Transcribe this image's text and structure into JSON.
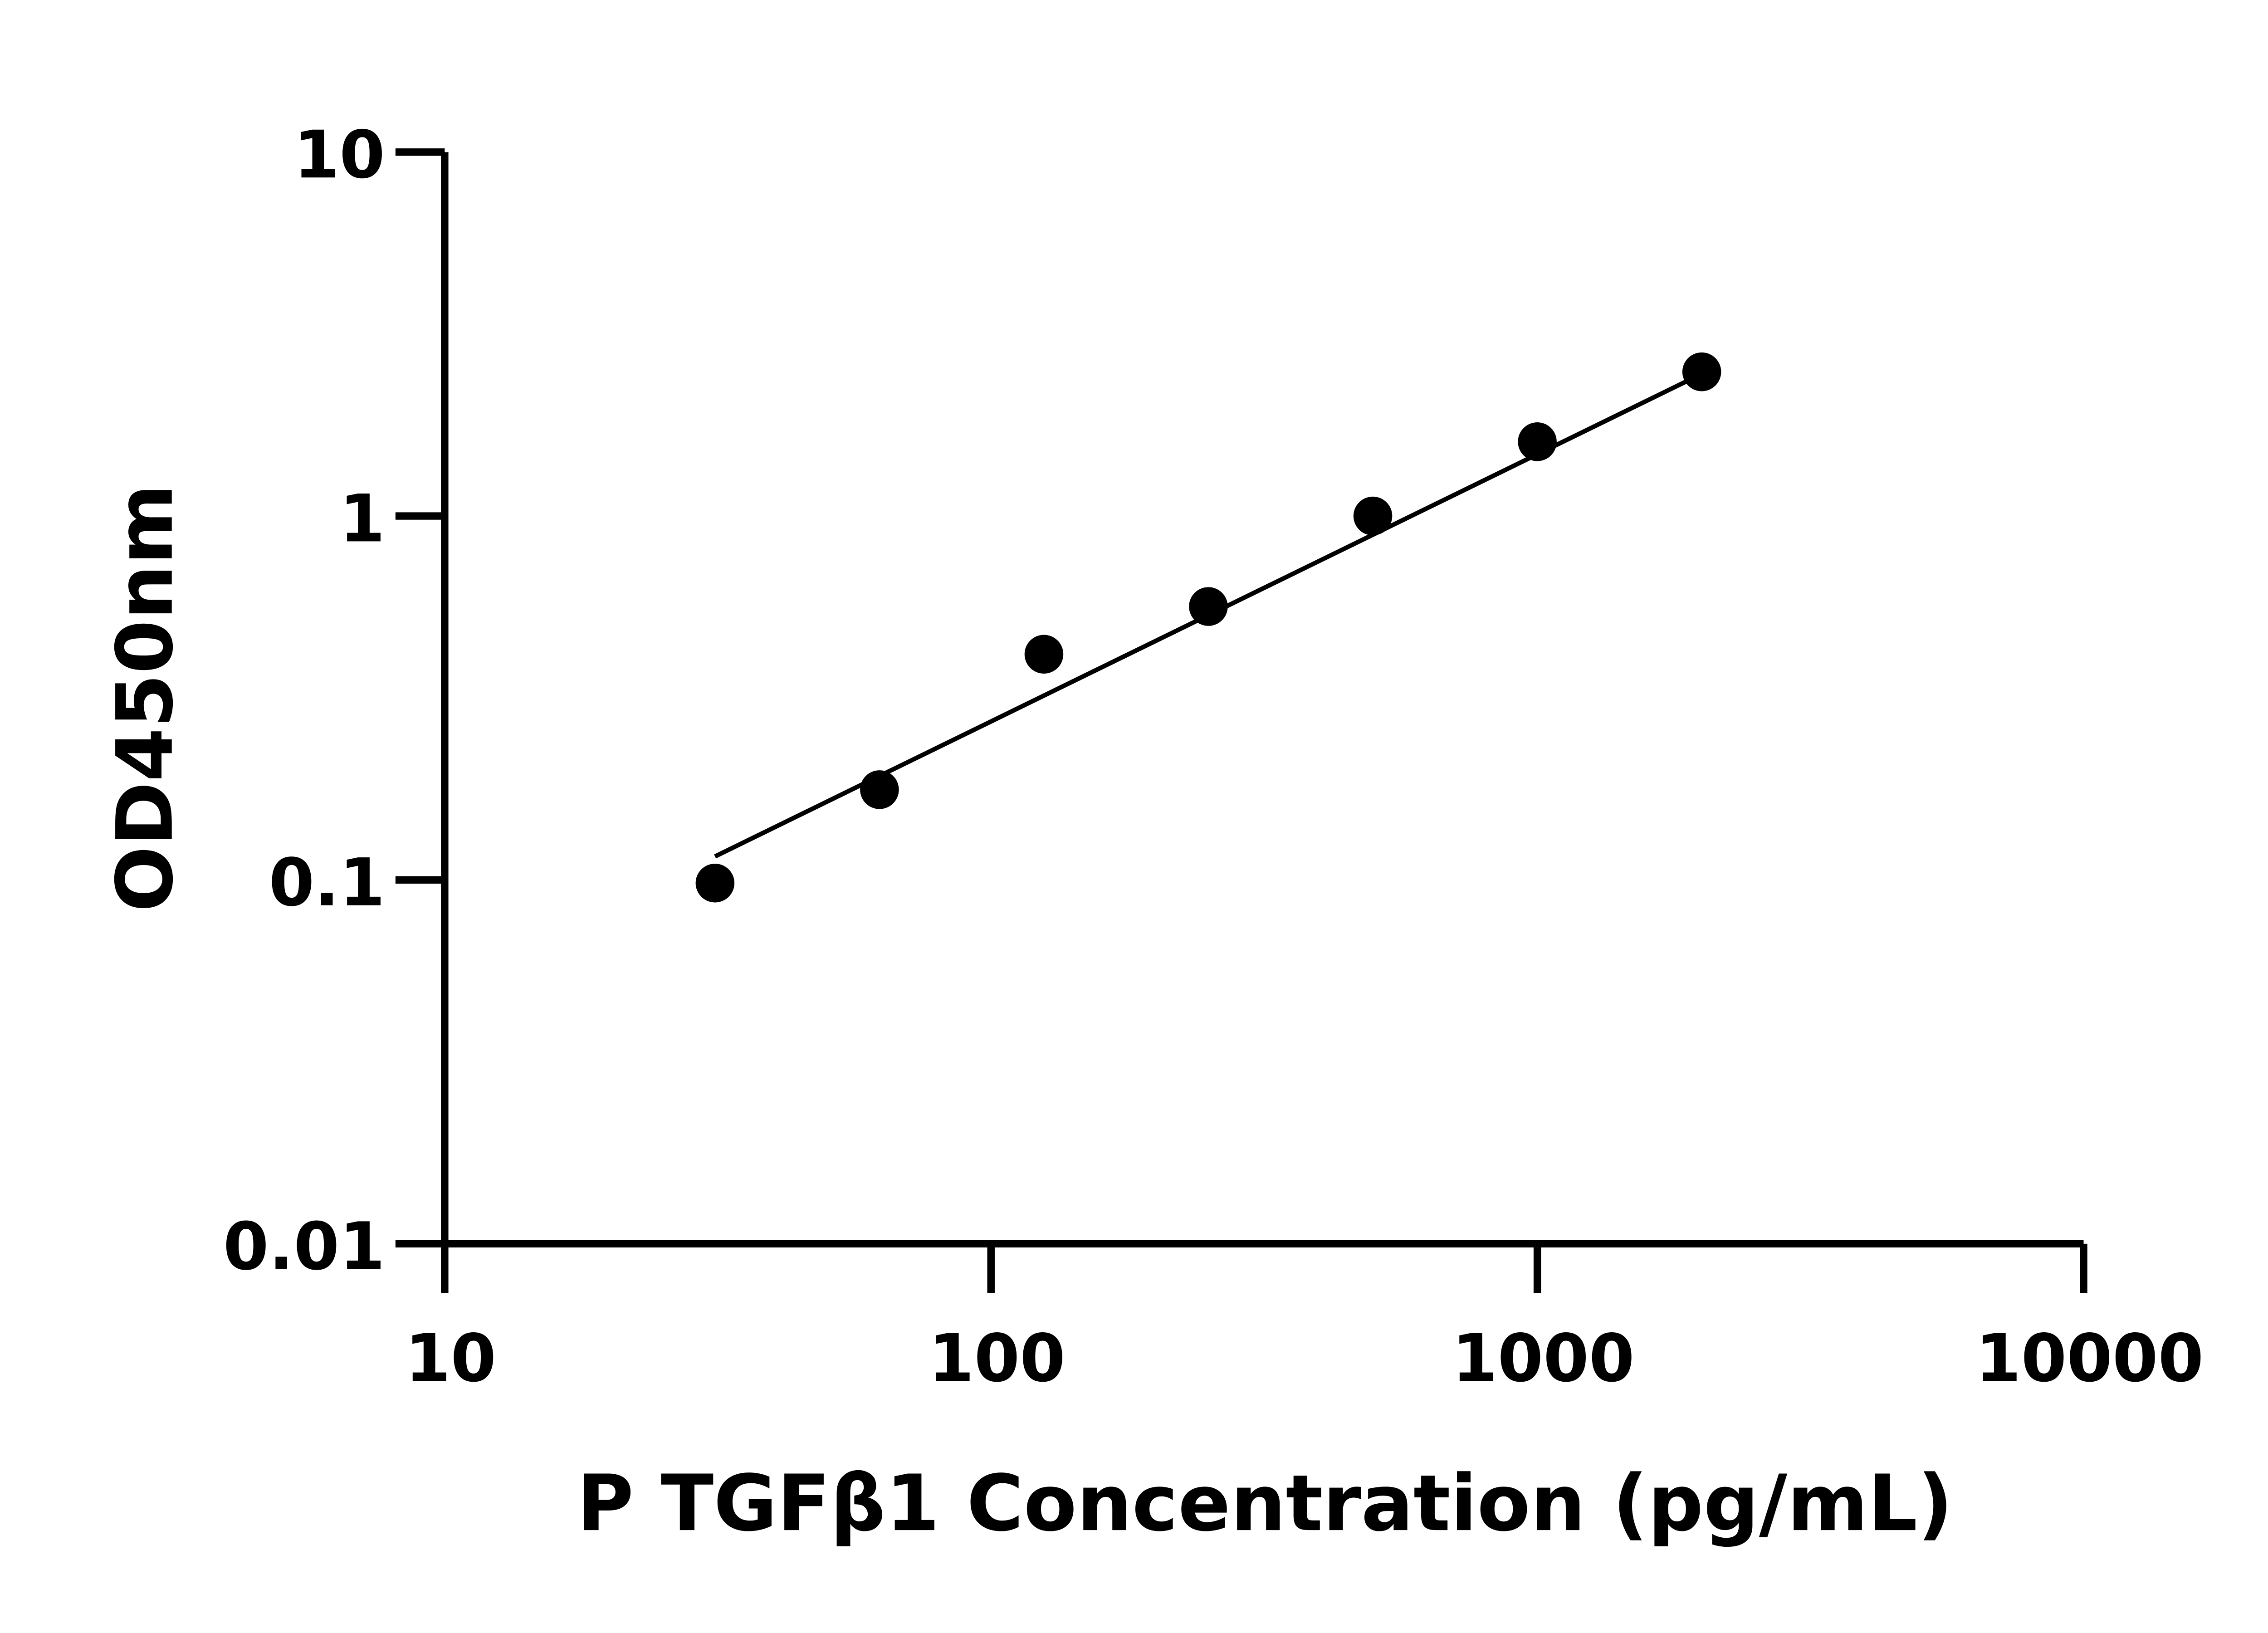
{
  "chart_data": {
    "type": "scatter",
    "title": "",
    "xlabel": "P TGFβ1 Concentration (pg/mL)",
    "ylabel": "OD450nm",
    "xscale": "log",
    "yscale": "log",
    "xlim": [
      10,
      10000
    ],
    "ylim": [
      0.01,
      10
    ],
    "xticks": [
      "10",
      "100",
      "1000",
      "10000"
    ],
    "yticks": [
      "0.01",
      "0.1",
      "1",
      "10"
    ],
    "grid": false,
    "legend": "none",
    "points": {
      "x": [
        31.25,
        62.5,
        125,
        250,
        500,
        1000,
        2000
      ],
      "y": [
        0.098,
        0.177,
        0.417,
        0.564,
        1.0,
        1.6,
        2.49
      ]
    },
    "fit_line": {
      "x": [
        31.25,
        1936
      ],
      "y": [
        0.116,
        2.4
      ]
    },
    "colors": {
      "points": "#000000",
      "line": "#000000",
      "axes": "#000000"
    }
  }
}
